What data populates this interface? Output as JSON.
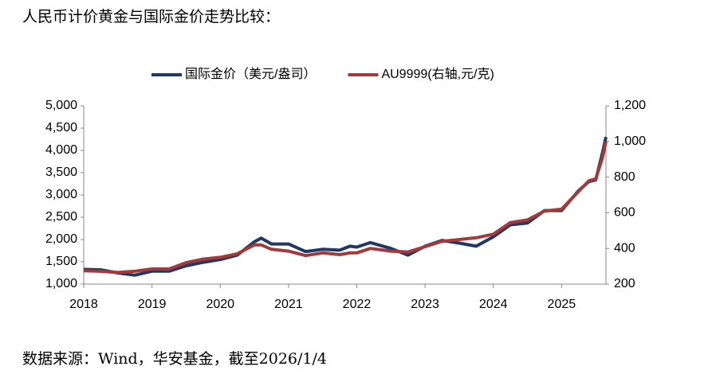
{
  "chart_data": {
    "type": "line",
    "title": "人民币计价黄金与国际金价走势比较：",
    "source": "数据来源：Wind，华安基金，截至2026/1/4",
    "legend": "top",
    "x": [
      2018,
      2018.25,
      2018.5,
      2018.75,
      2019,
      2019.25,
      2019.5,
      2019.75,
      2020,
      2020.25,
      2020.5,
      2020.6,
      2020.75,
      2021,
      2021.25,
      2021.5,
      2021.75,
      2021.9,
      2022,
      2022.2,
      2022.5,
      2022.75,
      2023,
      2023.25,
      2023.5,
      2023.75,
      2024,
      2024.25,
      2024.5,
      2024.75,
      2025,
      2025.25,
      2025.4,
      2025.5,
      2025.6,
      2025.65
    ],
    "xlim": [
      2018,
      2025.65
    ],
    "xticks": [
      2018,
      2019,
      2020,
      2021,
      2022,
      2023,
      2024,
      2025
    ],
    "ylim": [
      1000,
      5000
    ],
    "yticks": [
      {
        "value": 1000,
        "label": "1,000"
      },
      {
        "value": 1500,
        "label": "1,500"
      },
      {
        "value": 2000,
        "label": "2,000"
      },
      {
        "value": 2500,
        "label": "2,500"
      },
      {
        "value": 3000,
        "label": "3,000"
      },
      {
        "value": 3500,
        "label": "3,500"
      },
      {
        "value": 4000,
        "label": "4,000"
      },
      {
        "value": 4500,
        "label": "4,500"
      },
      {
        "value": 5000,
        "label": "5,000"
      }
    ],
    "y2lim": [
      200,
      1200
    ],
    "y2ticks": [
      200,
      400,
      600,
      800,
      {
        "value": 1000,
        "label": "1,000"
      },
      {
        "value": 1200,
        "label": "1,200"
      }
    ],
    "series": [
      {
        "name": "国际金价（美元/盎司）",
        "color": "#1f3864",
        "values": [
          1330,
          1320,
          1250,
          1200,
          1290,
          1290,
          1410,
          1490,
          1550,
          1650,
          1950,
          2030,
          1900,
          1900,
          1730,
          1780,
          1760,
          1850,
          1830,
          1930,
          1800,
          1650,
          1850,
          1980,
          1920,
          1850,
          2060,
          2330,
          2370,
          2650,
          2650,
          3100,
          3300,
          3340,
          3950,
          4300
        ]
      },
      {
        "name": "AU9999(右轴,元/克)",
        "color": "#a33a3a",
        "axis": "y2",
        "values": [
          275,
          272,
          265,
          272,
          285,
          285,
          320,
          340,
          350,
          370,
          420,
          420,
          395,
          385,
          360,
          375,
          365,
          375,
          375,
          400,
          385,
          380,
          410,
          440,
          450,
          460,
          480,
          545,
          560,
          610,
          620,
          720,
          780,
          790,
          910,
          1000
        ]
      }
    ]
  }
}
